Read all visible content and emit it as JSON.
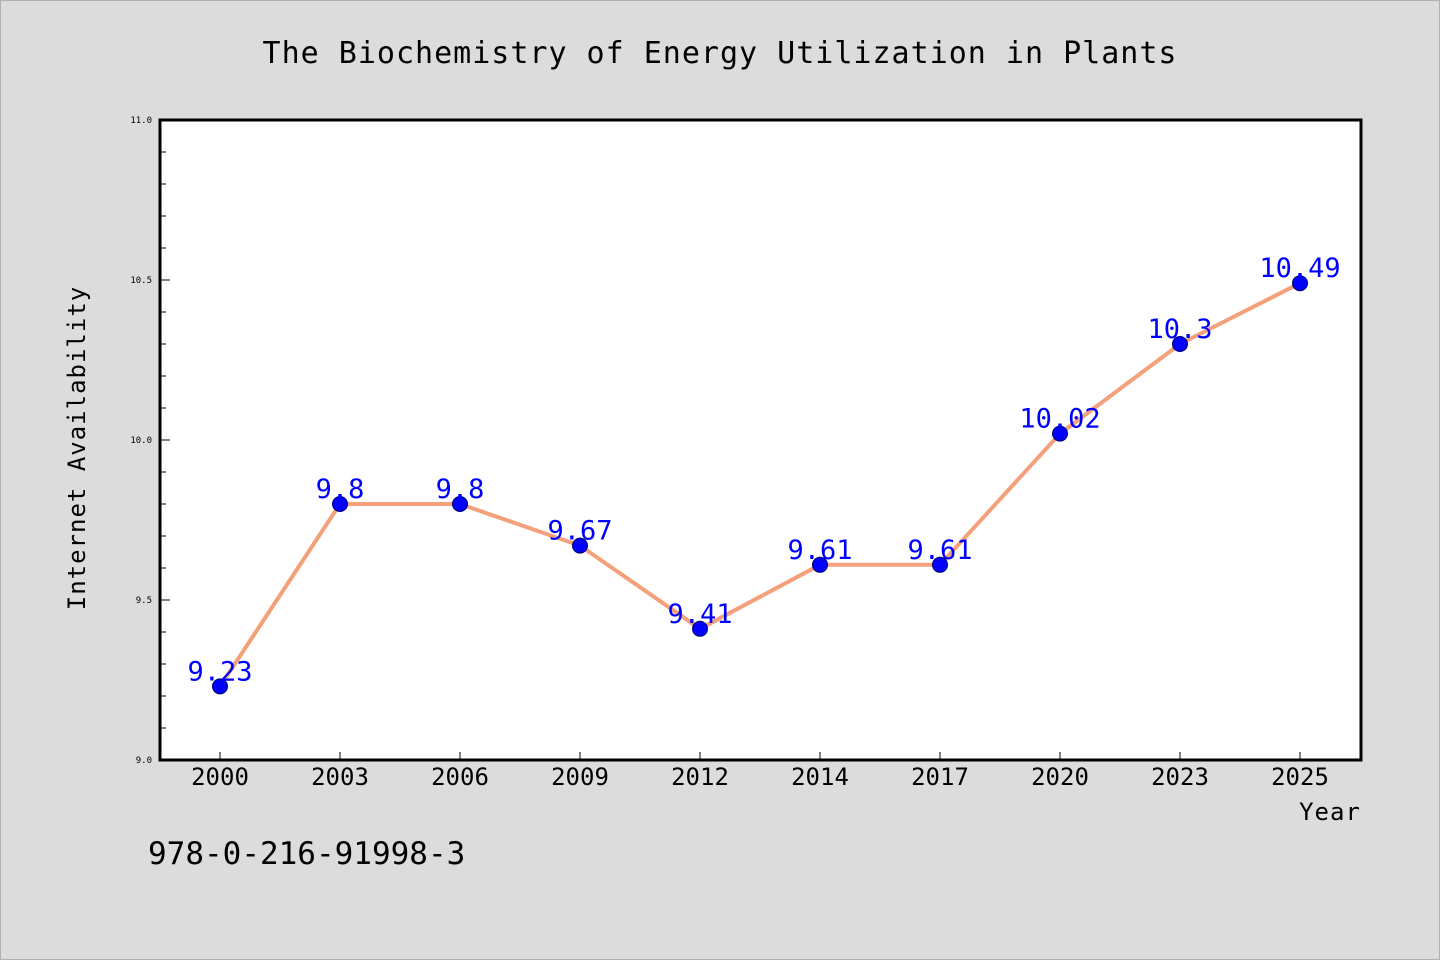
{
  "chart_data": {
    "type": "line",
    "title": "The Biochemistry of Energy Utilization in Plants",
    "xlabel": "Year",
    "ylabel": "Internet Availability",
    "categories": [
      "2000",
      "2003",
      "2006",
      "2009",
      "2012",
      "2014",
      "2017",
      "2020",
      "2023",
      "2025"
    ],
    "values": [
      9.23,
      9.8,
      9.8,
      9.67,
      9.41,
      9.61,
      9.61,
      10.02,
      10.3,
      10.49
    ],
    "data_labels": [
      "9.23",
      "9.8",
      "9.8",
      "9.67",
      "9.41",
      "9.61",
      "9.61",
      "10.02",
      "10.3",
      "10.49"
    ],
    "ylim": [
      9.0,
      11.0
    ],
    "y_ticks": [
      "9.0",
      "9.5",
      "10.0",
      "10.5",
      "11.0"
    ],
    "grid": false,
    "legend": "none",
    "colors": {
      "line": "#f4a07a",
      "marker": "#0000ff",
      "data_label": "#0000ff",
      "plot_background": "#ffffff",
      "figure_background": "#dcdcdc"
    }
  },
  "footer": {
    "isbn": "978-0-216-91998-3"
  }
}
